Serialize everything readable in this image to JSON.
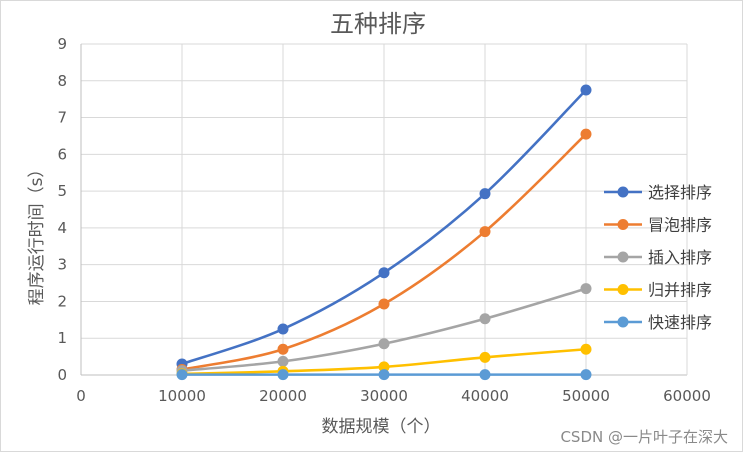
{
  "watermark": "CSDN @一片叶子在深大",
  "chart_data": {
    "type": "scatter",
    "title": "五种排序",
    "xlabel": "数据规模（个）",
    "ylabel": "程序运行时间（s）",
    "xlim": [
      0,
      60000
    ],
    "ylim": [
      0,
      9
    ],
    "xticks": [
      "0",
      "10000",
      "20000",
      "30000",
      "40000",
      "50000",
      "60000"
    ],
    "yticks": [
      "0",
      "1",
      "2",
      "3",
      "4",
      "5",
      "6",
      "7",
      "8",
      "9"
    ],
    "grid": "major gridlines on both axes",
    "legend_position": "right",
    "markers": true,
    "smoothed_lines": true,
    "x": [
      10000,
      20000,
      30000,
      40000,
      50000
    ],
    "series": [
      {
        "name": "选择排序",
        "color": "#4472c4",
        "values": [
          0.3,
          1.25,
          2.78,
          4.93,
          7.75
        ]
      },
      {
        "name": "冒泡排序",
        "color": "#ed7d31",
        "values": [
          0.15,
          0.7,
          1.93,
          3.9,
          6.55
        ]
      },
      {
        "name": "插入排序",
        "color": "#a5a5a5",
        "values": [
          0.12,
          0.37,
          0.85,
          1.53,
          2.35
        ]
      },
      {
        "name": "归并排序",
        "color": "#ffc000",
        "values": [
          0.03,
          0.1,
          0.22,
          0.48,
          0.7
        ]
      },
      {
        "name": "快速排序",
        "color": "#5b9bd5",
        "values": [
          0.01,
          0.01,
          0.01,
          0.01,
          0.01
        ]
      }
    ]
  }
}
